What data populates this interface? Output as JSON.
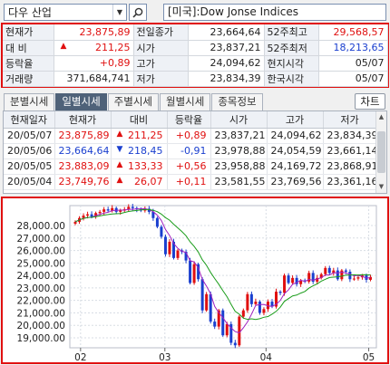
{
  "search": {
    "value": "다우 산업",
    "dropdown_icon": "chevron-down-icon",
    "search_icon": "search-icon"
  },
  "title": "[미국]:Dow Jonse Indices",
  "colors": {
    "up": "#e01010",
    "down": "#1a3fcf",
    "ma_short": "#a020c0",
    "ma_long": "#1a9c1a"
  },
  "quote": {
    "rows": [
      [
        {
          "label": "현재가"
        },
        {
          "value": "23,875,89",
          "color": "up"
        },
        {
          "label": "전일종가"
        },
        {
          "value": "23,664,64"
        },
        {
          "label": "52주최고"
        },
        {
          "value": "29,568,57",
          "color": "up"
        }
      ],
      [
        {
          "label": "대 비"
        },
        {
          "value": "211,25",
          "color": "up",
          "arrow": "▲"
        },
        {
          "label": "시가"
        },
        {
          "value": "23,837,21"
        },
        {
          "label": "52주최저"
        },
        {
          "value": "18,213,65",
          "color": "down"
        }
      ],
      [
        {
          "label": "등락율"
        },
        {
          "value": "+0,89",
          "color": "up"
        },
        {
          "label": "고가"
        },
        {
          "value": "24,094,62"
        },
        {
          "label": "현지시각"
        },
        {
          "value": "05/07"
        }
      ],
      [
        {
          "label": "거래량"
        },
        {
          "value": "371,684,741"
        },
        {
          "label": "저가"
        },
        {
          "value": "23,834,39"
        },
        {
          "label": "한국시각"
        },
        {
          "value": "05/07"
        }
      ]
    ]
  },
  "tabs": [
    "분별시세",
    "일별시세",
    "주별시세",
    "월별시세",
    "종목정보"
  ],
  "active_tab": 1,
  "chart_button": "차트",
  "daily": {
    "headers": [
      "현재일자",
      "현재가",
      "대비",
      "등락율",
      "시가",
      "고가",
      "저가"
    ],
    "rows": [
      {
        "date": "20/05/07",
        "price": "23,875,89",
        "dir": "up",
        "arrow": "▲",
        "change": "211,25",
        "rate": "+0,89",
        "open": "23,837,21",
        "high": "24,094,62",
        "low": "23,834,39"
      },
      {
        "date": "20/05/06",
        "price": "23,664,64",
        "dir": "down",
        "arrow": "▼",
        "change": "218,45",
        "rate": "-0,91",
        "open": "23,978,88",
        "high": "24,054,59",
        "low": "23,661,14"
      },
      {
        "date": "20/05/05",
        "price": "23,883,09",
        "dir": "up",
        "arrow": "▲",
        "change": "133,33",
        "rate": "+0,56",
        "open": "23,958,88",
        "high": "24,169,72",
        "low": "23,868,91"
      },
      {
        "date": "20/05/04",
        "price": "23,749,76",
        "dir": "up",
        "arrow": "▲",
        "change": "26,07",
        "rate": "+0,11",
        "open": "23,581,55",
        "high": "23,769,56",
        "low": "23,361,16"
      }
    ]
  },
  "chart_data": {
    "type": "candlestick",
    "y_ticks": [
      "28,000.00",
      "27,000.00",
      "26,000.00",
      "25,000.00",
      "24,000.00",
      "23,000.00",
      "22,000.00",
      "21,000.00",
      "20,000.00",
      "19,000.00"
    ],
    "ylim": [
      18200,
      29600
    ],
    "x_ticks": [
      "02",
      "03",
      "04",
      "05"
    ],
    "gridlines": true,
    "closes": [
      28300,
      28600,
      28800,
      28900,
      28700,
      29000,
      29100,
      29300,
      29200,
      29400,
      29100,
      29200,
      29300,
      29500,
      29400,
      29300,
      29200,
      29350,
      29100,
      28600,
      27900,
      27100,
      25700,
      26700,
      25400,
      26000,
      25900,
      25200,
      23400,
      24900,
      23700,
      21200,
      22500,
      20300,
      19900,
      21200,
      19200,
      20100,
      18600,
      18400,
      20700,
      21200,
      22500,
      21700,
      21900,
      21000,
      21300,
      21900,
      21500,
      22700,
      22600,
      24000,
      23400,
      23800,
      23300,
      23600,
      23500,
      24200,
      23500,
      23800,
      24100,
      24600,
      24200,
      24400,
      23700,
      24400,
      24300,
      23700,
      23750,
      23850,
      24000,
      23650,
      23880
    ],
    "ma_short": "20-day moving average (purple)",
    "ma_long": "60-day moving average (green)"
  }
}
